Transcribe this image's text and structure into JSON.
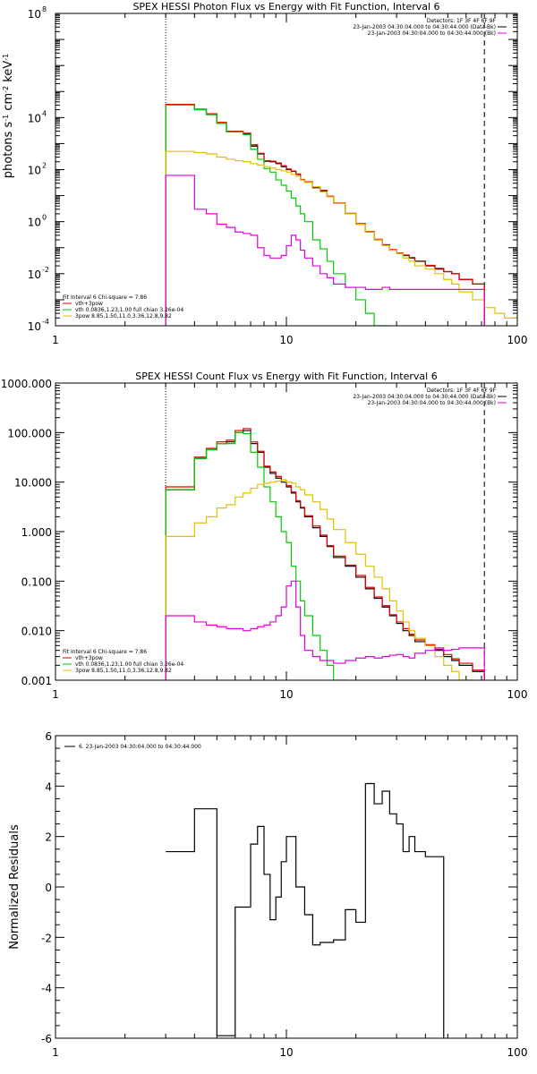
{
  "chart_data": [
    {
      "type": "line",
      "title": "SPEX HESSI Photon Flux vs Energy with Fit Function, Interval 6",
      "xlabel": "",
      "ylabel_main": "photons s",
      "ylabel_s_exp": "-1",
      "ylabel_cm": " cm",
      "ylabel_cm_exp": "-2",
      "ylabel_kev": " keV",
      "ylabel_kev_exp": "-1",
      "xscale": "log",
      "yscale": "log",
      "xlim": [
        1,
        100
      ],
      "ylim": [
        0.0001,
        100000000
      ],
      "xticks": [
        {
          "v": 1,
          "label": "1"
        },
        {
          "v": 10,
          "label": "10"
        },
        {
          "v": 100,
          "label": "100"
        }
      ],
      "yticks": [
        {
          "v": 0.0001,
          "base": "10",
          "exp": "-4"
        },
        {
          "v": 0.01,
          "base": "10",
          "exp": "-2"
        },
        {
          "v": 1,
          "base": "10",
          "exp": "0"
        },
        {
          "v": 100,
          "base": "10",
          "exp": "2"
        },
        {
          "v": 10000,
          "base": "10",
          "exp": "4"
        },
        {
          "v": 100000000,
          "base": "10",
          "exp": "8"
        }
      ],
      "legend_tr": [
        {
          "text": "Detectors: 1F 3F 4F 6F 9F",
          "color": null
        },
        {
          "text": "23-Jan-2003 04:30:04.000 to 04:30:44.000 (Data-Bk)",
          "color": "#000000"
        },
        {
          "text": "23-Jan-2003 04:30:04.000 to 04:30:44.000 (Bk)",
          "color": "#e000e0"
        }
      ],
      "legend_bl_header": "Fit Interval 6   Chi-square = 7.86",
      "legend_bl": [
        {
          "text": "vth+3pow",
          "color": "#e00000"
        },
        {
          "text": "vth 0.0836,1.23,1.00  full chian 3.26e-04",
          "color": "#00cc00"
        },
        {
          "text": "3pow 8.85,1.50,11.0,3.36,12.8,9.82",
          "color": "#e0c000"
        }
      ],
      "vlines": [
        {
          "x": 3,
          "style": "dotted"
        },
        {
          "x": 72,
          "style": "dashed"
        }
      ],
      "edges": [
        3,
        3.5,
        4,
        4.5,
        5,
        5.5,
        6,
        6.5,
        7,
        7.5,
        8,
        8.5,
        9,
        9.5,
        10,
        10.5,
        11,
        11.5,
        12,
        13,
        14,
        15,
        16,
        18,
        20,
        22,
        24,
        26,
        28,
        30,
        32,
        34,
        36,
        40,
        44,
        48,
        52,
        56,
        64,
        72,
        80,
        88,
        100
      ],
      "series": [
        {
          "color": "#000000",
          "values": [
            30000,
            30000,
            20000,
            13000,
            6000,
            2800,
            2800,
            2400,
            800,
            400,
            210,
            200,
            170,
            130,
            100,
            85,
            65,
            40,
            32,
            20,
            15,
            9,
            5,
            2,
            0.8,
            0.4,
            0.2,
            0.12,
            0.08,
            0.06,
            0.05,
            0.04,
            0.03,
            0.02,
            0.015,
            0.012,
            0.01,
            0.006,
            0.004,
            null,
            null,
            null
          ]
        },
        {
          "color": "#e00000",
          "values": [
            32000,
            32000,
            21000,
            14000,
            6500,
            3000,
            3000,
            2500,
            900,
            420,
            220,
            210,
            180,
            140,
            105,
            88,
            68,
            42,
            34,
            21,
            16,
            9.5,
            5.2,
            2.1,
            0.85,
            0.42,
            0.21,
            0.13,
            0.085,
            0.063,
            0.052,
            0.042,
            0.031,
            0.021,
            0.016,
            0.012,
            0.01,
            0.006,
            0.004,
            null,
            null,
            null
          ]
        },
        {
          "color": "#00cc00",
          "values": [
            30000,
            30000,
            20000,
            13000,
            6000,
            2800,
            2800,
            2200,
            600,
            250,
            110,
            80,
            40,
            25,
            15,
            8,
            4,
            2,
            1,
            0.2,
            0.09,
            0.03,
            0.01,
            0.003,
            0.001,
            0.0003,
            0.0001,
            0.0001,
            null,
            null,
            null,
            null,
            null,
            null,
            null,
            null,
            null,
            null,
            null,
            null,
            null,
            null
          ]
        },
        {
          "color": "#e0c000",
          "values": [
            500,
            500,
            450,
            400,
            300,
            250,
            220,
            200,
            170,
            150,
            130,
            115,
            100,
            90,
            80,
            65,
            55,
            40,
            32,
            22,
            14,
            9,
            5,
            2,
            0.8,
            0.4,
            0.2,
            0.12,
            0.08,
            0.06,
            0.04,
            0.03,
            0.02,
            0.015,
            0.01,
            0.006,
            0.004,
            0.002,
            0.001,
            0.0005,
            0.0003,
            0.0002
          ]
        },
        {
          "color": "#e000e0",
          "values": [
            60,
            60,
            3,
            2,
            0.8,
            0.6,
            0.4,
            0.35,
            0.3,
            0.1,
            0.05,
            0.04,
            0.04,
            0.05,
            0.12,
            0.3,
            0.2,
            0.08,
            0.04,
            0.02,
            0.01,
            0.007,
            0.004,
            0.003,
            0.003,
            0.0025,
            0.0025,
            0.003,
            0.0025,
            0.0025,
            0.0025,
            0.0025,
            0.0025,
            0.0025,
            0.0025,
            0.0025,
            0.0025,
            0.0025,
            0.0025,
            null,
            null,
            null
          ]
        }
      ]
    },
    {
      "type": "line",
      "title": "SPEX HESSI Count Flux vs Energy with Fit Function, Interval 6",
      "xlabel": "",
      "ylabel": "",
      "xscale": "log",
      "yscale": "log",
      "xlim": [
        1,
        100
      ],
      "ylim": [
        0.001,
        1000
      ],
      "xticks": [
        {
          "v": 1,
          "label": "1"
        },
        {
          "v": 10,
          "label": "10"
        },
        {
          "v": 100,
          "label": "100"
        }
      ],
      "yticks": [
        {
          "v": 0.001,
          "label": "0.001"
        },
        {
          "v": 0.01,
          "label": "0.010"
        },
        {
          "v": 0.1,
          "label": "0.100"
        },
        {
          "v": 1,
          "label": "1.000"
        },
        {
          "v": 10,
          "label": "10.000"
        },
        {
          "v": 100,
          "label": "100.000"
        },
        {
          "v": 1000,
          "label": "1000.000"
        }
      ],
      "legend_tr": [
        {
          "text": "Detectors: 1F 3F 4F 6F 9F",
          "color": null
        },
        {
          "text": "23-Jan-2003 04:30:04.000 to 04:30:44.000 (Data-Bk)",
          "color": "#000000"
        },
        {
          "text": "23-Jan-2003 04:30:04.000 to 04:30:44.000 (Bk)",
          "color": "#e000e0"
        }
      ],
      "legend_bl_header": "Fit Interval 6   Chi-square = 7.86",
      "legend_bl": [
        {
          "text": "vth+3pow",
          "color": "#e00000"
        },
        {
          "text": "vth 0.0836,1.23,1.00  full chian 3.26e-04",
          "color": "#00cc00"
        },
        {
          "text": "3pow 8.85,1.50,11.0,3.36,12.8,9.82",
          "color": "#e0c000"
        }
      ],
      "vlines": [
        {
          "x": 3,
          "style": "dotted"
        },
        {
          "x": 72,
          "style": "dashed"
        }
      ],
      "edges": [
        3,
        3.5,
        4,
        4.5,
        5,
        5.5,
        6,
        6.5,
        7,
        7.5,
        8,
        8.5,
        9,
        9.5,
        10,
        10.5,
        11,
        11.5,
        12,
        13,
        14,
        15,
        16,
        18,
        20,
        22,
        24,
        26,
        28,
        30,
        32,
        34,
        36,
        40,
        44,
        48,
        52,
        56,
        64,
        72
      ],
      "series": [
        {
          "color": "#000000",
          "values": [
            7,
            7,
            30,
            45,
            60,
            65,
            100,
            110,
            60,
            40,
            20,
            15,
            12,
            10,
            8,
            6,
            4,
            3,
            2,
            1.2,
            0.8,
            0.5,
            0.3,
            0.2,
            0.12,
            0.07,
            0.045,
            0.03,
            0.02,
            0.014,
            0.01,
            0.008,
            0.006,
            0.005,
            0.004,
            0.003,
            0.0025,
            0.002,
            0.0015
          ]
        },
        {
          "color": "#e00000",
          "values": [
            8,
            8,
            32,
            48,
            65,
            70,
            110,
            120,
            65,
            42,
            21,
            16,
            13,
            11,
            8.5,
            6.3,
            4.2,
            3.1,
            2.1,
            1.3,
            0.85,
            0.52,
            0.32,
            0.21,
            0.13,
            0.075,
            0.048,
            0.032,
            0.021,
            0.015,
            0.011,
            0.0085,
            0.0065,
            0.0052,
            0.0042,
            0.0033,
            0.0027,
            0.0022,
            0.0016
          ]
        },
        {
          "color": "#00cc00",
          "values": [
            7,
            7,
            30,
            45,
            60,
            60,
            100,
            95,
            40,
            20,
            8,
            4,
            2,
            1,
            0.6,
            0.2,
            0.1,
            0.04,
            0.02,
            0.008,
            0.004,
            0.002,
            0.001,
            0.0005,
            null,
            null,
            null,
            null,
            null,
            null,
            null,
            null,
            null,
            null,
            null,
            null,
            null,
            null,
            null
          ]
        },
        {
          "color": "#e0c000",
          "values": [
            0.8,
            0.8,
            1.5,
            2,
            3,
            3.5,
            5,
            6,
            7.5,
            9,
            9.5,
            10,
            10.5,
            11,
            10,
            9.5,
            8,
            7,
            5.5,
            4,
            2.8,
            1.8,
            1.1,
            0.6,
            0.35,
            0.2,
            0.12,
            0.07,
            0.04,
            0.025,
            0.015,
            0.01,
            0.007,
            0.005,
            0.003,
            0.002,
            0.0015,
            0.001,
            0.0007
          ]
        },
        {
          "color": "#e000e0",
          "values": [
            0.02,
            0.02,
            0.015,
            0.013,
            0.012,
            0.011,
            0.011,
            0.01,
            0.011,
            0.012,
            0.013,
            0.015,
            0.02,
            0.03,
            0.08,
            0.1,
            0.03,
            0.008,
            0.004,
            0.003,
            0.0025,
            0.0025,
            0.0022,
            0.0025,
            0.0028,
            0.003,
            0.0028,
            0.003,
            0.0032,
            0.0033,
            0.003,
            0.0028,
            0.0035,
            0.004,
            0.0045,
            0.004,
            0.0042,
            0.0045,
            0.0045
          ]
        }
      ]
    },
    {
      "type": "line",
      "title": "",
      "xlabel": "",
      "ylabel": "Normalized Residuals",
      "xscale": "log",
      "yscale": "linear",
      "xlim": [
        1,
        100
      ],
      "ylim": [
        -6,
        6
      ],
      "xticks": [
        {
          "v": 1,
          "label": "1"
        },
        {
          "v": 10,
          "label": "10"
        },
        {
          "v": 100,
          "label": "100"
        }
      ],
      "yticks": [
        {
          "v": -6,
          "label": "-6"
        },
        {
          "v": -4,
          "label": "-4"
        },
        {
          "v": -2,
          "label": "-2"
        },
        {
          "v": 0,
          "label": "0"
        },
        {
          "v": 2,
          "label": "2"
        },
        {
          "v": 4,
          "label": "4"
        },
        {
          "v": 6,
          "label": "6"
        }
      ],
      "legend_tl": [
        {
          "text": "6. 23-Jan-2003 04:30:04.000 to 04:30:44.000",
          "color": "#000000"
        }
      ],
      "edges": [
        3,
        4,
        4.5,
        5,
        5.5,
        6,
        6.5,
        7,
        7.5,
        8,
        8.5,
        9,
        9.5,
        10,
        10.5,
        11,
        11.5,
        12,
        13,
        14,
        15,
        16,
        18,
        20,
        22,
        24,
        26,
        28,
        30,
        32,
        34,
        36,
        40,
        44,
        48,
        52,
        56,
        64,
        72
      ],
      "series": [
        {
          "color": "#000000",
          "values": [
            1.4,
            3.1,
            3.1,
            -5.9,
            -5.9,
            -0.8,
            -0.8,
            1.7,
            2.4,
            0.5,
            -1.3,
            -0.4,
            1.0,
            2.0,
            2.0,
            0.0,
            0.0,
            -1.1,
            -2.3,
            -2.2,
            -2.2,
            -2.1,
            -0.9,
            -1.4,
            4.1,
            3.3,
            3.8,
            2.9,
            2.5,
            1.4,
            2.0,
            1.4,
            1.2,
            1.2,
            null,
            null,
            null,
            null
          ]
        }
      ]
    }
  ]
}
